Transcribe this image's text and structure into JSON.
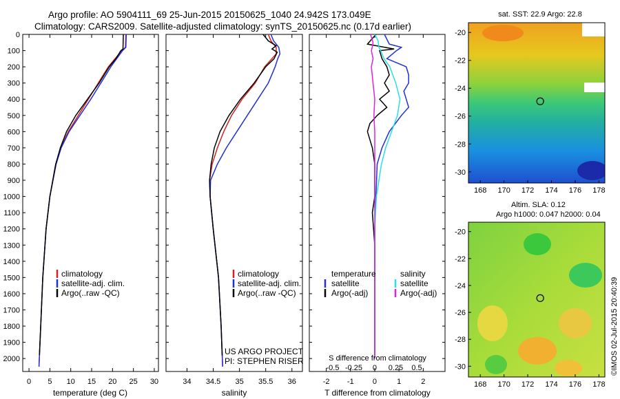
{
  "title": {
    "line1": "Argo profile: AO 5904111_69 25-Jun-2015 20150625_1040 24.942S 173.049E",
    "line2": "Climatology: CARS2009. Satellite-adjusted climatology: synTS_20150625.nc (0.17d earlier)"
  },
  "side_credit": "©IMOS 02-Jul-2015 20:40:39",
  "colors": {
    "red": "#d42020",
    "blue": "#1f2fd6",
    "black": "#000000",
    "cyan": "#28e0e6",
    "magenta": "#e020e0"
  },
  "chart_data": [
    {
      "id": "temperature",
      "type": "line",
      "xlabel": "temperature (deg C)",
      "xlim": [
        -1.5,
        31
      ],
      "xticks": [
        0,
        5,
        10,
        15,
        20,
        25,
        30
      ],
      "ylim": [
        2080,
        0
      ],
      "yticks": [
        0,
        100,
        200,
        300,
        400,
        500,
        600,
        700,
        800,
        900,
        1000,
        1100,
        1200,
        1300,
        1400,
        1500,
        1600,
        1700,
        1800,
        1900,
        2000
      ],
      "legend": [
        "climatology",
        "satellite-adj. clim.",
        "Argo(..raw -QC)"
      ],
      "series": [
        {
          "name": "climatology",
          "color": "red",
          "depth": [
            0,
            80,
            100,
            150,
            200,
            300,
            400,
            500,
            600,
            700,
            800,
            1000,
            1200,
            1500,
            1800,
            2050
          ],
          "values": [
            23.2,
            23.1,
            22.2,
            20.6,
            19.0,
            16.6,
            14.2,
            11.8,
            9.4,
            7.6,
            6.4,
            5.0,
            4.1,
            3.3,
            2.8,
            2.4
          ]
        },
        {
          "name": "satellite-adj. clim.",
          "color": "blue",
          "depth": [
            0,
            80,
            100,
            150,
            200,
            300,
            400,
            500,
            600,
            700,
            800,
            1000,
            1200,
            1500,
            1800,
            2050
          ],
          "values": [
            23.3,
            23.2,
            22.4,
            21.0,
            19.6,
            17.2,
            14.8,
            12.2,
            9.6,
            7.7,
            6.5,
            5.0,
            4.1,
            3.3,
            2.8,
            2.4
          ]
        },
        {
          "name": "Argo(..raw -QC)",
          "color": "black",
          "depth": [
            0,
            90,
            100,
            150,
            200,
            300,
            400,
            500,
            600,
            700,
            800,
            1000,
            1200,
            1500,
            1800,
            1980
          ],
          "values": [
            22.6,
            22.5,
            22.0,
            20.8,
            19.2,
            16.8,
            14.0,
            11.2,
            9.0,
            7.5,
            6.4,
            5.0,
            4.1,
            3.3,
            2.8,
            2.5
          ]
        }
      ]
    },
    {
      "id": "salinity",
      "type": "line",
      "xlabel": "salinity",
      "xlim": [
        33.6,
        36.2
      ],
      "xticks": [
        34,
        34.5,
        35,
        35.5,
        36
      ],
      "ylim": [
        2080,
        0
      ],
      "legend": [
        "climatology",
        "satellite-adj. clim.",
        "Argo(..raw -QC)"
      ],
      "annotation": [
        "US ARGO PROJECT",
        "PI: STEPHEN RISER"
      ],
      "series": [
        {
          "name": "climatology",
          "color": "red",
          "depth": [
            0,
            40,
            80,
            120,
            150,
            200,
            300,
            400,
            500,
            600,
            700,
            800,
            900,
            1000,
            1200,
            1500,
            1800,
            2050
          ],
          "values": [
            35.55,
            35.6,
            35.7,
            35.7,
            35.62,
            35.48,
            35.3,
            35.05,
            34.85,
            34.7,
            34.58,
            34.48,
            34.43,
            34.44,
            34.5,
            34.6,
            34.65,
            34.68
          ]
        },
        {
          "name": "satellite-adj. clim.",
          "color": "blue",
          "depth": [
            0,
            40,
            80,
            120,
            150,
            200,
            300,
            400,
            500,
            600,
            700,
            800,
            900,
            1000,
            1200,
            1500,
            1800,
            2050
          ],
          "values": [
            35.6,
            35.65,
            35.75,
            35.77,
            35.73,
            35.68,
            35.55,
            35.35,
            35.15,
            34.95,
            34.75,
            34.58,
            34.45,
            34.44,
            34.5,
            34.6,
            34.65,
            34.68
          ]
        },
        {
          "name": "Argo(..raw -QC)",
          "color": "black",
          "depth": [
            0,
            40,
            70,
            90,
            110,
            150,
            200,
            300,
            400,
            500,
            600,
            700,
            800,
            900,
            1000,
            1200,
            1500,
            1800,
            1980
          ],
          "values": [
            35.45,
            35.55,
            35.7,
            35.62,
            35.72,
            35.66,
            35.5,
            35.28,
            35.02,
            34.8,
            34.63,
            34.52,
            34.46,
            34.43,
            34.44,
            34.5,
            34.6,
            34.65,
            34.67
          ]
        }
      ]
    },
    {
      "id": "difference",
      "type": "line",
      "xlabel": "T difference from climatology",
      "xlim": [
        -2.7,
        2.9
      ],
      "xticks": [
        -2,
        -1,
        0,
        1,
        2
      ],
      "top_label": "S difference from climatology",
      "s_ticks": [
        "-0.5",
        "-0.25",
        "0",
        "0.25",
        "0.5"
      ],
      "s_range": [
        -0.5,
        0.5
      ],
      "ylim": [
        2080,
        0
      ],
      "legend_titles": [
        "temperature",
        "salinity"
      ],
      "legend": [
        "satellite",
        "Argo(-adj)",
        "satellite",
        "Argo(-adj)"
      ],
      "series": [
        {
          "name": "T satellite",
          "color": "blue",
          "depth": [
            0,
            60,
            80,
            100,
            150,
            200,
            250,
            300,
            350,
            400,
            450,
            500,
            600,
            700,
            800,
            1000,
            1200,
            1500,
            1800,
            2000
          ],
          "values": [
            0.4,
            0.6,
            1.1,
            0.9,
            0.5,
            1.3,
            1.4,
            1.4,
            1.2,
            1.3,
            1.4,
            1.1,
            0.6,
            0.3,
            0.1,
            0.05,
            0.0,
            0.0,
            0.0,
            0.0
          ]
        },
        {
          "name": "T Argo(-adj)",
          "color": "black",
          "depth": [
            0,
            60,
            90,
            100,
            150,
            200,
            250,
            300,
            350,
            400,
            450,
            500,
            550,
            600,
            700,
            800,
            1000,
            1100,
            1300,
            1500,
            1800,
            1980
          ],
          "values": [
            0.05,
            -0.3,
            0.8,
            0.2,
            0.3,
            0.5,
            0.6,
            0.4,
            0.6,
            0.2,
            0.5,
            0.1,
            -0.2,
            -0.3,
            -0.1,
            0.0,
            0.0,
            -0.1,
            0.0,
            0.0,
            0.0,
            0.0
          ]
        },
        {
          "name": "S satellite",
          "color": "cyan",
          "depth": [
            0,
            40,
            80,
            100,
            150,
            200,
            300,
            400,
            500,
            600,
            700,
            800,
            1000,
            1200,
            1500,
            1800,
            2000
          ],
          "values": [
            0.0,
            0.04,
            0.05,
            0.07,
            0.11,
            0.18,
            0.25,
            0.3,
            0.27,
            0.2,
            0.13,
            0.08,
            0.02,
            0.0,
            0.0,
            0.0,
            0.0
          ]
        },
        {
          "name": "S Argo(-adj)",
          "color": "magenta",
          "depth": [
            0,
            50,
            80,
            100,
            150,
            200,
            300,
            400,
            500,
            600,
            700,
            800,
            1000,
            1200,
            1500,
            1800,
            2000
          ],
          "values": [
            -0.05,
            -0.02,
            -0.03,
            -0.04,
            -0.02,
            -0.04,
            -0.02,
            0.0,
            -0.01,
            0.0,
            0.0,
            0.0,
            0.0,
            0.0,
            0.0,
            0.0,
            0.0
          ]
        }
      ]
    },
    {
      "id": "sst_map",
      "type": "heatmap",
      "title": "sat. SST: 22.9  Argo: 22.8",
      "xticks": [
        168,
        170,
        172,
        174,
        176,
        178
      ],
      "yticks": [
        -20,
        -22,
        -24,
        -26,
        -28,
        -30
      ],
      "xlim": [
        167,
        178.5
      ],
      "ylim": [
        -19.3,
        -30.8
      ],
      "float_position": {
        "lon": 173.05,
        "lat": -24.94
      }
    },
    {
      "id": "sla_map",
      "type": "heatmap",
      "title": [
        "Altim. SLA: 0.12",
        "Argo h1000: 0.047 h2000: 0.04"
      ],
      "xticks": [
        168,
        170,
        172,
        174,
        176,
        178
      ],
      "yticks": [
        -20,
        -22,
        -24,
        -26,
        -28,
        -30
      ],
      "xlim": [
        167,
        178.5
      ],
      "ylim": [
        -19.3,
        -30.8
      ],
      "float_position": {
        "lon": 173.05,
        "lat": -24.94
      }
    }
  ]
}
